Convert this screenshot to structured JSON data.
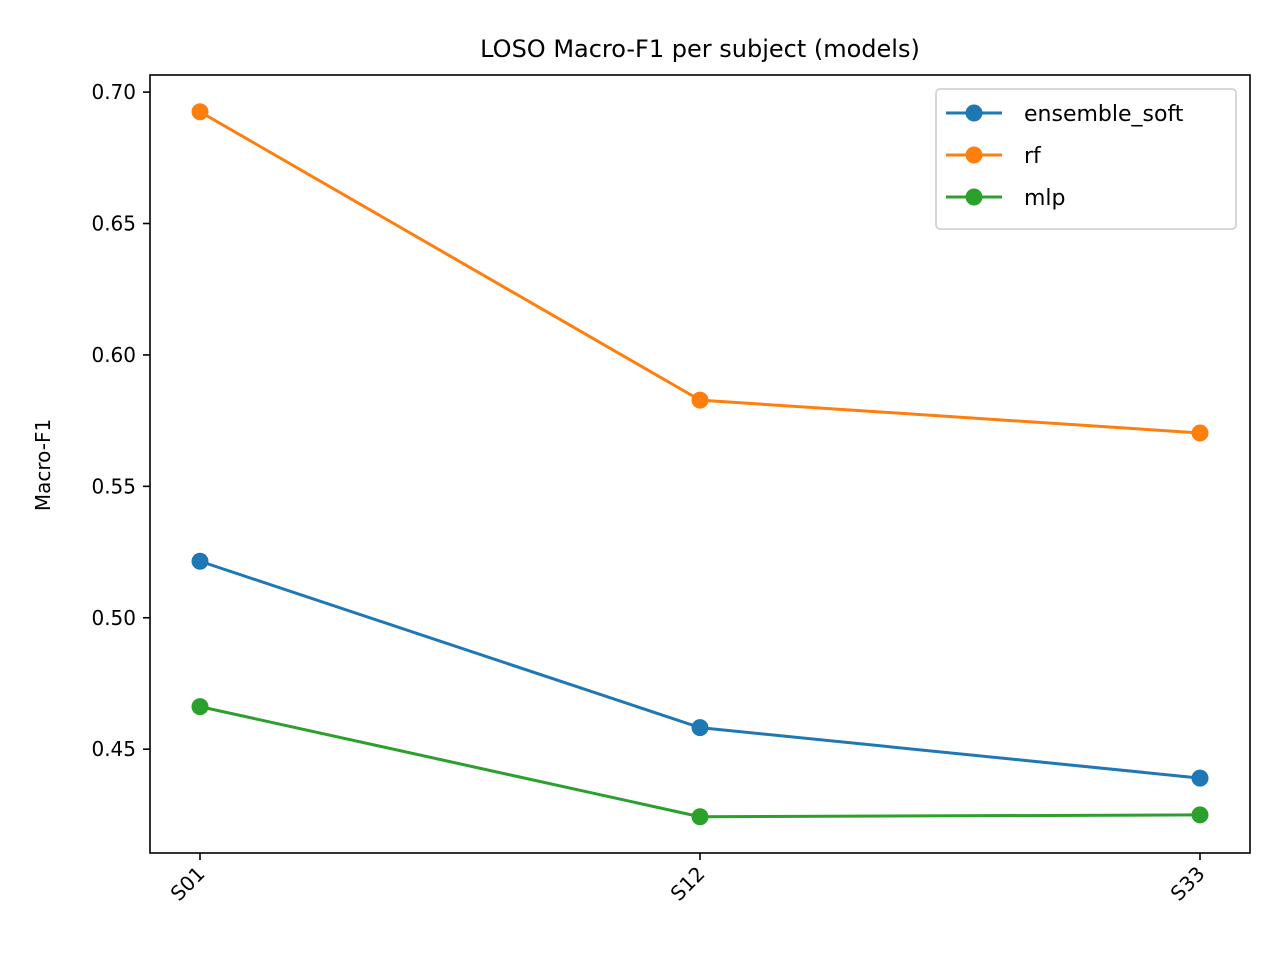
{
  "chart_data": {
    "type": "line",
    "title": "LOSO Macro-F1 per subject (models)",
    "xlabel": "",
    "ylabel": "Macro-F1",
    "categories": [
      "S01",
      "S12",
      "S33"
    ],
    "y_ticks": [
      0.45,
      0.5,
      0.55,
      0.6,
      0.65,
      0.7
    ],
    "ylim": [
      0.4105,
      0.7065
    ],
    "grid": false,
    "legend_position": "top-right",
    "marker": "circle",
    "series": [
      {
        "name": "ensemble_soft",
        "color": "#1f77b4",
        "values": [
          0.5215,
          0.4582,
          0.439
        ]
      },
      {
        "name": "rf",
        "color": "#ff7f0e",
        "values": [
          0.6925,
          0.5828,
          0.5703
        ]
      },
      {
        "name": "mlp",
        "color": "#2ca02c",
        "values": [
          0.4662,
          0.4243,
          0.425
        ]
      }
    ]
  }
}
